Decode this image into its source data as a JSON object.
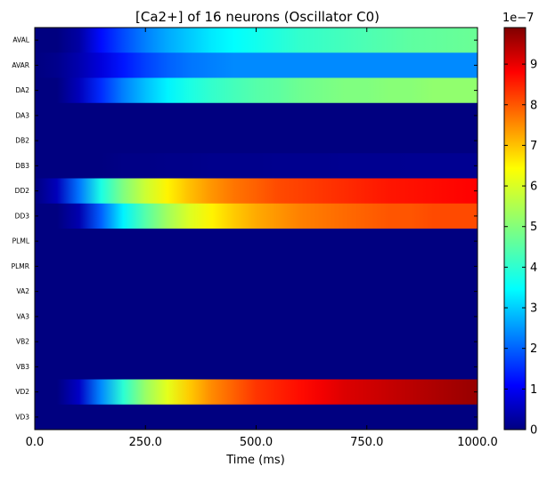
{
  "chart_data": {
    "type": "heatmap",
    "title": "[Ca2+] of 16 neurons (Oscillator C0)",
    "xlabel": "Time (ms)",
    "ylabel": "",
    "xlim": [
      0,
      1000
    ],
    "x_ticks": [
      "0.0",
      "250.0",
      "500.0",
      "750.0",
      "1000.0"
    ],
    "rows": [
      "AVAL",
      "AVAR",
      "DA2",
      "DA3",
      "DB2",
      "DB3",
      "DD2",
      "DD3",
      "PLML",
      "PLMR",
      "VA2",
      "VA3",
      "VB2",
      "VB3",
      "VD2",
      "VD3"
    ],
    "time_ms": [
      0,
      50,
      100,
      150,
      200,
      250,
      300,
      350,
      400,
      450,
      500,
      550,
      600,
      650,
      700,
      750,
      800,
      850,
      900,
      950,
      1000
    ],
    "series": [
      {
        "name": "AVAL",
        "values": [
          0.0,
          0.0,
          0.03,
          0.12,
          0.18,
          0.23,
          0.27,
          0.3,
          0.33,
          0.35,
          0.37,
          0.39,
          0.41,
          0.42,
          0.43,
          0.44,
          0.45,
          0.46,
          0.465,
          0.47,
          0.475
        ]
      },
      {
        "name": "AVAR",
        "values": [
          0.0,
          0.01,
          0.04,
          0.08,
          0.13,
          0.17,
          0.2,
          0.22,
          0.23,
          0.24,
          0.24,
          0.24,
          0.24,
          0.24,
          0.24,
          0.24,
          0.24,
          0.24,
          0.24,
          0.24,
          0.24
        ]
      },
      {
        "name": "DA2",
        "values": [
          0.0,
          0.0,
          0.05,
          0.15,
          0.23,
          0.29,
          0.34,
          0.38,
          0.41,
          0.43,
          0.45,
          0.46,
          0.48,
          0.49,
          0.5,
          0.5,
          0.51,
          0.51,
          0.52,
          0.52,
          0.52
        ]
      },
      {
        "name": "DA3",
        "values": [
          0.0,
          0.0,
          0.0,
          0.0,
          0.0,
          0.0,
          0.0,
          0.0,
          0.0,
          0.0,
          0.0,
          0.0,
          0.0,
          0.0,
          0.0,
          0.0,
          0.0,
          0.0,
          0.0,
          0.0,
          0.0
        ]
      },
      {
        "name": "DB2",
        "values": [
          0.0,
          0.0,
          0.0,
          0.0,
          0.0,
          0.0,
          0.0,
          0.0,
          0.0,
          0.0,
          0.0,
          0.0,
          0.0,
          0.0,
          0.0,
          0.0,
          0.0,
          0.0,
          0.0,
          0.0,
          0.0
        ]
      },
      {
        "name": "DB3",
        "values": [
          0.0,
          0.0,
          0.0,
          0.0,
          0.005,
          0.005,
          0.008,
          0.008,
          0.01,
          0.01,
          0.01,
          0.012,
          0.012,
          0.012,
          0.014,
          0.014,
          0.014,
          0.015,
          0.015,
          0.015,
          0.015
        ]
      },
      {
        "name": "DD2",
        "values": [
          0.0,
          0.05,
          0.22,
          0.38,
          0.5,
          0.59,
          0.66,
          0.71,
          0.75,
          0.78,
          0.8,
          0.82,
          0.83,
          0.84,
          0.85,
          0.86,
          0.87,
          0.875,
          0.88,
          0.885,
          0.89
        ]
      },
      {
        "name": "DD3",
        "values": [
          0.0,
          0.0,
          0.04,
          0.2,
          0.34,
          0.45,
          0.54,
          0.61,
          0.66,
          0.7,
          0.73,
          0.75,
          0.77,
          0.78,
          0.79,
          0.8,
          0.81,
          0.81,
          0.82,
          0.82,
          0.82
        ]
      },
      {
        "name": "PLML",
        "values": [
          0.0,
          0.0,
          0.0,
          0.0,
          0.0,
          0.0,
          0.0,
          0.0,
          0.0,
          0.0,
          0.0,
          0.0,
          0.0,
          0.0,
          0.0,
          0.0,
          0.0,
          0.0,
          0.0,
          0.0,
          0.0
        ]
      },
      {
        "name": "PLMR",
        "values": [
          0.0,
          0.0,
          0.0,
          0.0,
          0.0,
          0.0,
          0.0,
          0.0,
          0.0,
          0.0,
          0.0,
          0.0,
          0.0,
          0.0,
          0.0,
          0.0,
          0.0,
          0.0,
          0.0,
          0.0,
          0.0
        ]
      },
      {
        "name": "VA2",
        "values": [
          0.0,
          0.0,
          0.0,
          0.0,
          0.0,
          0.0,
          0.0,
          0.0,
          0.0,
          0.0,
          0.0,
          0.0,
          0.0,
          0.0,
          0.0,
          0.0,
          0.0,
          0.0,
          0.0,
          0.0,
          0.0
        ]
      },
      {
        "name": "VA3",
        "values": [
          0.0,
          0.0,
          0.0,
          0.0,
          0.0,
          0.0,
          0.0,
          0.0,
          0.0,
          0.0,
          0.0,
          0.0,
          0.0,
          0.0,
          0.0,
          0.0,
          0.0,
          0.0,
          0.0,
          0.0,
          0.0
        ]
      },
      {
        "name": "VB2",
        "values": [
          0.0,
          0.0,
          0.0,
          0.0,
          0.0,
          0.0,
          0.0,
          0.0,
          0.0,
          0.0,
          0.0,
          0.0,
          0.0,
          0.0,
          0.0,
          0.0,
          0.0,
          0.0,
          0.0,
          0.0,
          0.0
        ]
      },
      {
        "name": "VB3",
        "values": [
          0.0,
          0.0,
          0.0,
          0.0,
          0.0,
          0.0,
          0.0,
          0.0,
          0.0,
          0.0,
          0.0,
          0.0,
          0.0,
          0.0,
          0.0,
          0.0,
          0.0,
          0.0,
          0.0,
          0.0,
          0.0
        ]
      },
      {
        "name": "VD2",
        "values": [
          0.0,
          0.0,
          0.06,
          0.24,
          0.4,
          0.53,
          0.62,
          0.7,
          0.76,
          0.8,
          0.84,
          0.86,
          0.88,
          0.9,
          0.92,
          0.93,
          0.94,
          0.95,
          0.96,
          0.97,
          0.98
        ]
      },
      {
        "name": "VD3",
        "values": [
          0.0,
          0.0,
          0.0,
          0.0,
          0.0,
          0.0,
          0.0,
          0.0,
          0.0,
          0.0,
          0.0,
          0.0,
          0.0,
          0.0,
          0.0,
          0.0,
          0.0,
          0.0,
          0.0,
          0.0,
          0.0
        ]
      }
    ],
    "values_unit_multiplier": "1e-7",
    "colorbar": {
      "offset_label": "1e−7",
      "ticks": [
        "0",
        "1",
        "2",
        "3",
        "4",
        "5",
        "6",
        "7",
        "8",
        "9"
      ],
      "tick_values": [
        0,
        1,
        2,
        3,
        4,
        5,
        6,
        7,
        8,
        9
      ],
      "range": [
        0,
        9.9
      ],
      "colormap": "jet",
      "colormap_stops": [
        "#000080",
        "#0000ff",
        "#00ffff",
        "#ffff00",
        "#ff0000",
        "#800000"
      ]
    },
    "grid": false
  }
}
